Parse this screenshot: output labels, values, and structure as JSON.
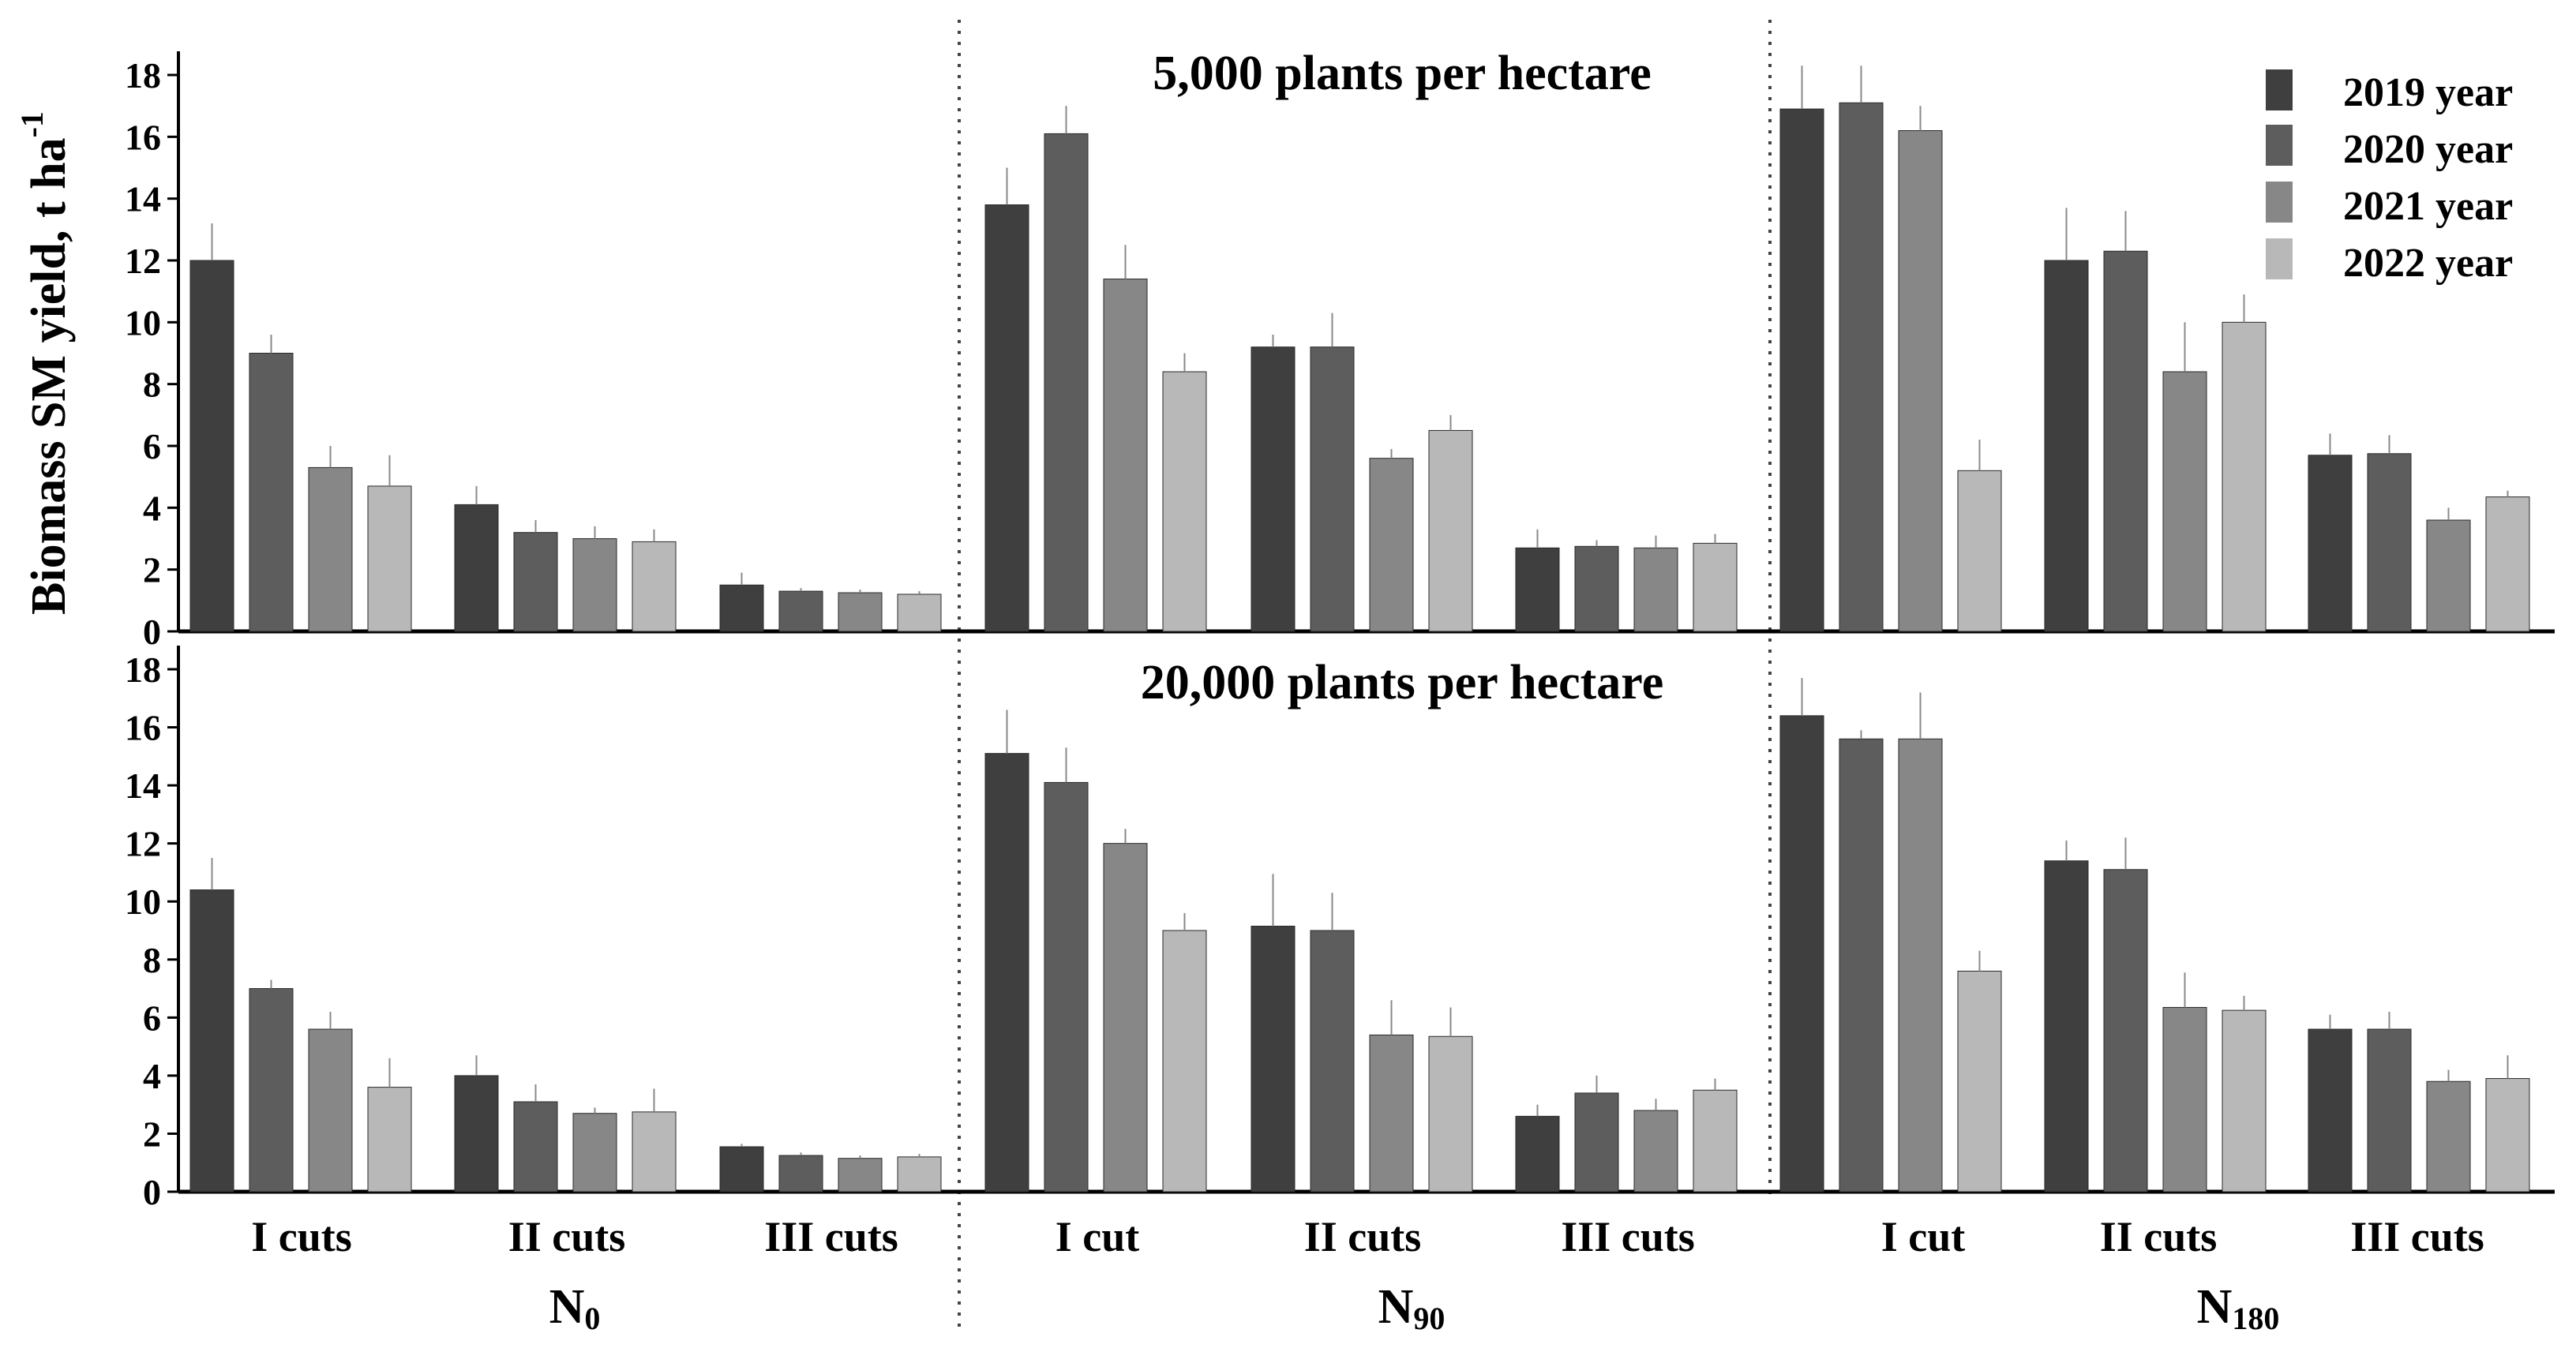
{
  "chart_data": {
    "type": "bar",
    "ylabel": "Biomass SM yield, t ha",
    "ylabel_superscript": "-1",
    "ylim": [
      0,
      19
    ],
    "yticks": [
      0,
      2,
      4,
      6,
      8,
      10,
      12,
      14,
      16,
      18
    ],
    "categories": [
      "I cuts",
      "II cuts",
      "III cuts"
    ],
    "category_labels_per_group": [
      [
        "I cuts",
        "II cuts",
        "III cuts"
      ],
      [
        "I cut",
        "II cuts",
        "III cuts"
      ],
      [
        "I cut",
        "II cuts",
        "III cuts"
      ]
    ],
    "groups": [
      {
        "main": "N",
        "sub": "0"
      },
      {
        "main": "N",
        "sub": "90"
      },
      {
        "main": "N",
        "sub": "180"
      }
    ],
    "legend": [
      {
        "name": "2019 year",
        "color": "#3f3f3f"
      },
      {
        "name": "2020 year",
        "color": "#5d5d5d"
      },
      {
        "name": "2021 year",
        "color": "#878787"
      },
      {
        "name": "2022 year",
        "color": "#b8b8b8"
      }
    ],
    "legend_position": "top-right",
    "panels": [
      {
        "title": "5,000 plants per hectare",
        "values": [
          [
            [
              12.0,
              9.0,
              5.3,
              4.7
            ],
            [
              4.1,
              3.2,
              3.0,
              2.9
            ],
            [
              1.5,
              1.3,
              1.25,
              1.2
            ]
          ],
          [
            [
              13.8,
              16.1,
              11.4,
              8.4
            ],
            [
              9.2,
              9.2,
              5.6,
              6.5
            ],
            [
              2.7,
              2.75,
              2.7,
              2.85
            ]
          ],
          [
            [
              16.9,
              17.1,
              16.2,
              5.2
            ],
            [
              12.0,
              12.3,
              8.4,
              10.0
            ],
            [
              5.7,
              5.75,
              3.6,
              4.35
            ]
          ]
        ],
        "errors": [
          [
            [
              1.2,
              0.6,
              0.7,
              1.0
            ],
            [
              0.6,
              0.4,
              0.4,
              0.4
            ],
            [
              0.4,
              0.1,
              0.1,
              0.1
            ]
          ],
          [
            [
              1.2,
              0.9,
              1.1,
              0.6
            ],
            [
              0.4,
              1.1,
              0.3,
              0.5
            ],
            [
              0.6,
              0.2,
              0.4,
              0.3
            ]
          ],
          [
            [
              1.4,
              1.2,
              0.8,
              1.0
            ],
            [
              1.7,
              1.3,
              1.6,
              0.9
            ],
            [
              0.7,
              0.6,
              0.4,
              0.2
            ]
          ]
        ]
      },
      {
        "title": "20,000 plants per hectare",
        "values": [
          [
            [
              10.4,
              7.0,
              5.6,
              3.6
            ],
            [
              4.0,
              3.1,
              2.7,
              2.75
            ],
            [
              1.55,
              1.25,
              1.15,
              1.2
            ]
          ],
          [
            [
              15.1,
              14.1,
              12.0,
              9.0
            ],
            [
              9.15,
              9.0,
              5.4,
              5.35
            ],
            [
              2.6,
              3.4,
              2.8,
              3.5
            ]
          ],
          [
            [
              16.4,
              15.6,
              15.6,
              7.6
            ],
            [
              11.4,
              11.1,
              6.35,
              6.25
            ],
            [
              5.6,
              5.6,
              3.8,
              3.9
            ]
          ]
        ],
        "errors": [
          [
            [
              1.1,
              0.3,
              0.6,
              1.0
            ],
            [
              0.7,
              0.6,
              0.2,
              0.8
            ],
            [
              0.1,
              0.1,
              0.1,
              0.1
            ]
          ],
          [
            [
              1.5,
              1.2,
              0.5,
              0.6
            ],
            [
              1.8,
              1.3,
              1.2,
              1.0
            ],
            [
              0.4,
              0.6,
              0.4,
              0.4
            ]
          ],
          [
            [
              1.3,
              0.3,
              1.6,
              0.7
            ],
            [
              0.7,
              1.1,
              1.2,
              0.5
            ],
            [
              0.5,
              0.6,
              0.4,
              0.8
            ]
          ]
        ]
      }
    ]
  }
}
